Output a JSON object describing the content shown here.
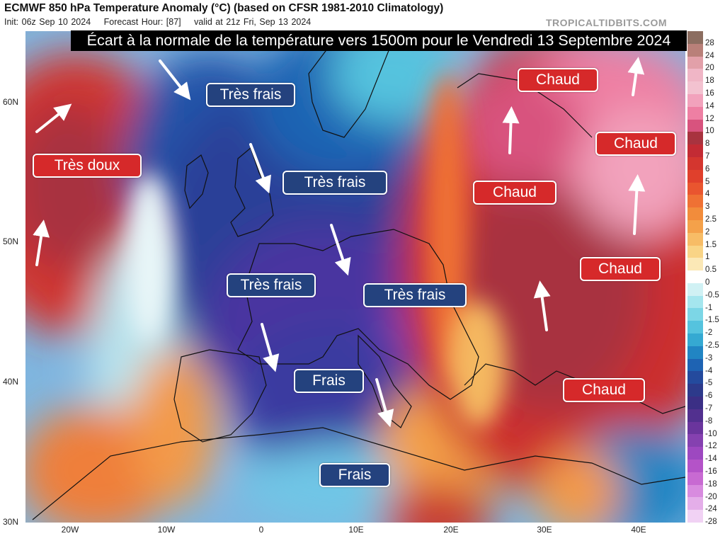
{
  "header": {
    "title": "ECMWF 850 hPa Temperature Anomaly (°C) (based on CFSR 1981-2010 Climatology)",
    "init": "Init: 06z Sep 10 2024",
    "forecast_hour": "Forecast Hour: [87]",
    "valid": "valid at 21z Fri, Sep 13 2024",
    "brand": "TROPICALTIDBITS.COM"
  },
  "headline": "Écart à la normale de la température vers 1500m pour le Vendredi 13 Septembre 2024",
  "labels": [
    {
      "text": "Très frais",
      "kind": "cold"
    },
    {
      "text": "Très doux",
      "kind": "warm"
    },
    {
      "text": "Très frais",
      "kind": "cold"
    },
    {
      "text": "Très frais",
      "kind": "cold"
    },
    {
      "text": "Très frais",
      "kind": "cold"
    },
    {
      "text": "Frais",
      "kind": "cold"
    },
    {
      "text": "Frais",
      "kind": "cold"
    },
    {
      "text": "Chaud",
      "kind": "warm"
    },
    {
      "text": "Chaud",
      "kind": "warm"
    },
    {
      "text": "Chaud",
      "kind": "warm"
    },
    {
      "text": "Chaud",
      "kind": "warm"
    },
    {
      "text": "Chaud",
      "kind": "warm"
    }
  ],
  "label_colors": {
    "cold": "#24427e",
    "warm": "#d6292a"
  },
  "lat_ticks": [
    "60N",
    "50N",
    "40N",
    "30N"
  ],
  "lon_ticks": [
    "20W",
    "10W",
    "0",
    "10E",
    "20E",
    "30E",
    "40E"
  ],
  "colorbar": {
    "labels": [
      "28",
      "24",
      "20",
      "18",
      "16",
      "14",
      "12",
      "10",
      "8",
      "7",
      "6",
      "5",
      "4",
      "3",
      "2.5",
      "2",
      "1.5",
      "1",
      "0.5",
      "0",
      "-0.5",
      "-1",
      "-1.5",
      "-2",
      "-2.5",
      "-3",
      "-4",
      "-5",
      "-6",
      "-7",
      "-8",
      "-10",
      "-12",
      "-14",
      "-16",
      "-18",
      "-20",
      "-24",
      "-28"
    ],
    "colors": [
      "#8c6d60",
      "#b98079",
      "#e2a0a9",
      "#f0b6c6",
      "#f3c2d0",
      "#f2a2bc",
      "#ee7fa3",
      "#d8537e",
      "#a8333f",
      "#c32b34",
      "#d4362f",
      "#e0402c",
      "#e9552f",
      "#ef7134",
      "#f28c3b",
      "#f4a14a",
      "#f7bc66",
      "#f9d486",
      "#fbe8b6",
      "#ffffff",
      "#d0f1f4",
      "#a5e6ee",
      "#7cd6e6",
      "#55c3de",
      "#35a9d2",
      "#2185c3",
      "#1e63b3",
      "#244a9d",
      "#2d3a8b",
      "#3b2f85",
      "#52308f",
      "#6a359d",
      "#8541b0",
      "#9d48c0",
      "#b453c8",
      "#c86ad2",
      "#d88bdf",
      "#e4aee9",
      "#f1d2f4"
    ]
  }
}
